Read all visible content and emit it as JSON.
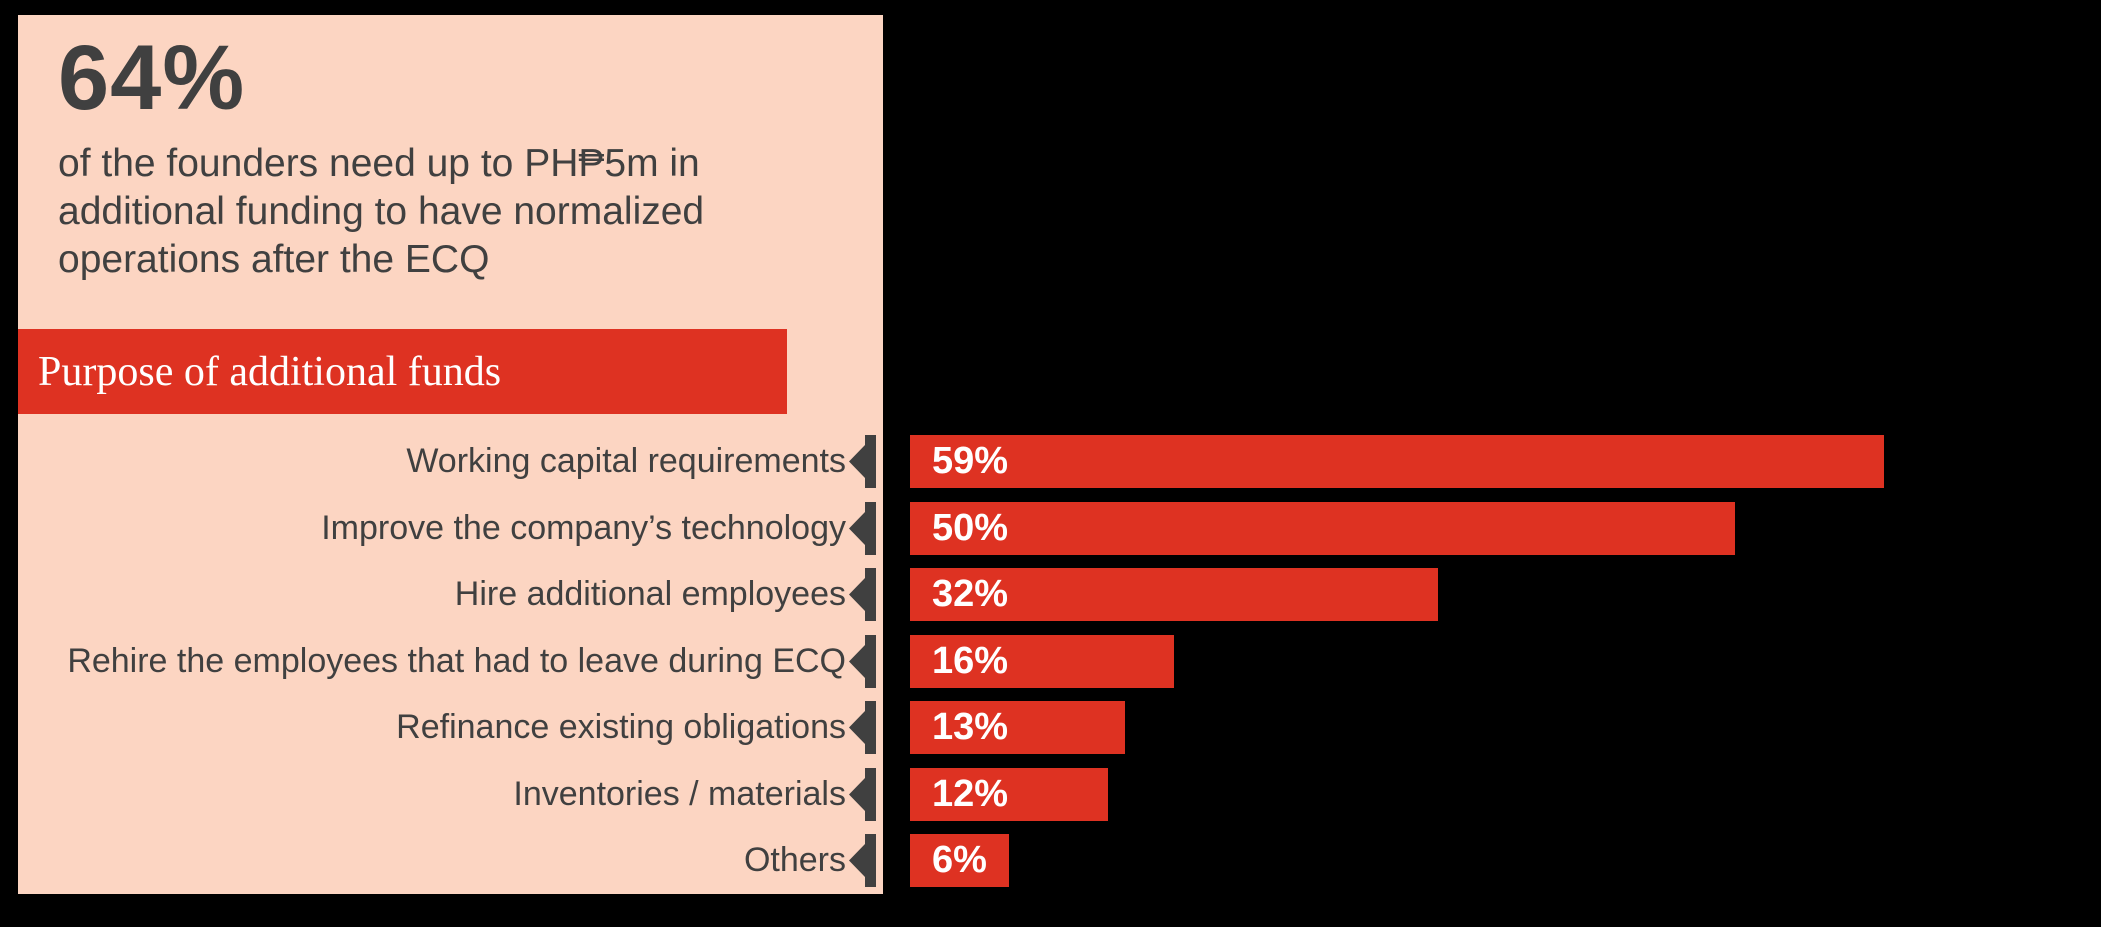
{
  "title_block": {
    "stat": "64%",
    "description": "of the founders need up to PH₱5m in additional funding to have normalized operations after the ECQ",
    "description_lines": [
      "of the founders need up to PH₱5m in",
      "additional funding to have normalized",
      "operations after the ECQ"
    ]
  },
  "section_banner": {
    "label": "Purpose of additional funds"
  },
  "colors": {
    "background": "#000000",
    "panel": "#FCD5C2",
    "accent_red": "#DE3222",
    "text_dark": "#404040",
    "text_light": "#FFFFFF",
    "marker": "#404040"
  },
  "chart_data": {
    "type": "bar",
    "orientation": "horizontal",
    "title": "Purpose of additional funds",
    "categories": [
      "Working capital requirements",
      "Improve the company’s technology",
      "Hire additional employees",
      "Rehire the employees that had to leave during ECQ",
      "Refinance existing obligations",
      "Inventories / materials",
      "Others"
    ],
    "values": [
      59,
      50,
      32,
      16,
      13,
      12,
      6
    ],
    "value_labels": [
      "59%",
      "50%",
      "32%",
      "16%",
      "13%",
      "12%",
      "6%"
    ],
    "unit": "%",
    "xlim": [
      0,
      59
    ],
    "bar_color": "#DE3222",
    "grid": false,
    "legend": "none"
  }
}
